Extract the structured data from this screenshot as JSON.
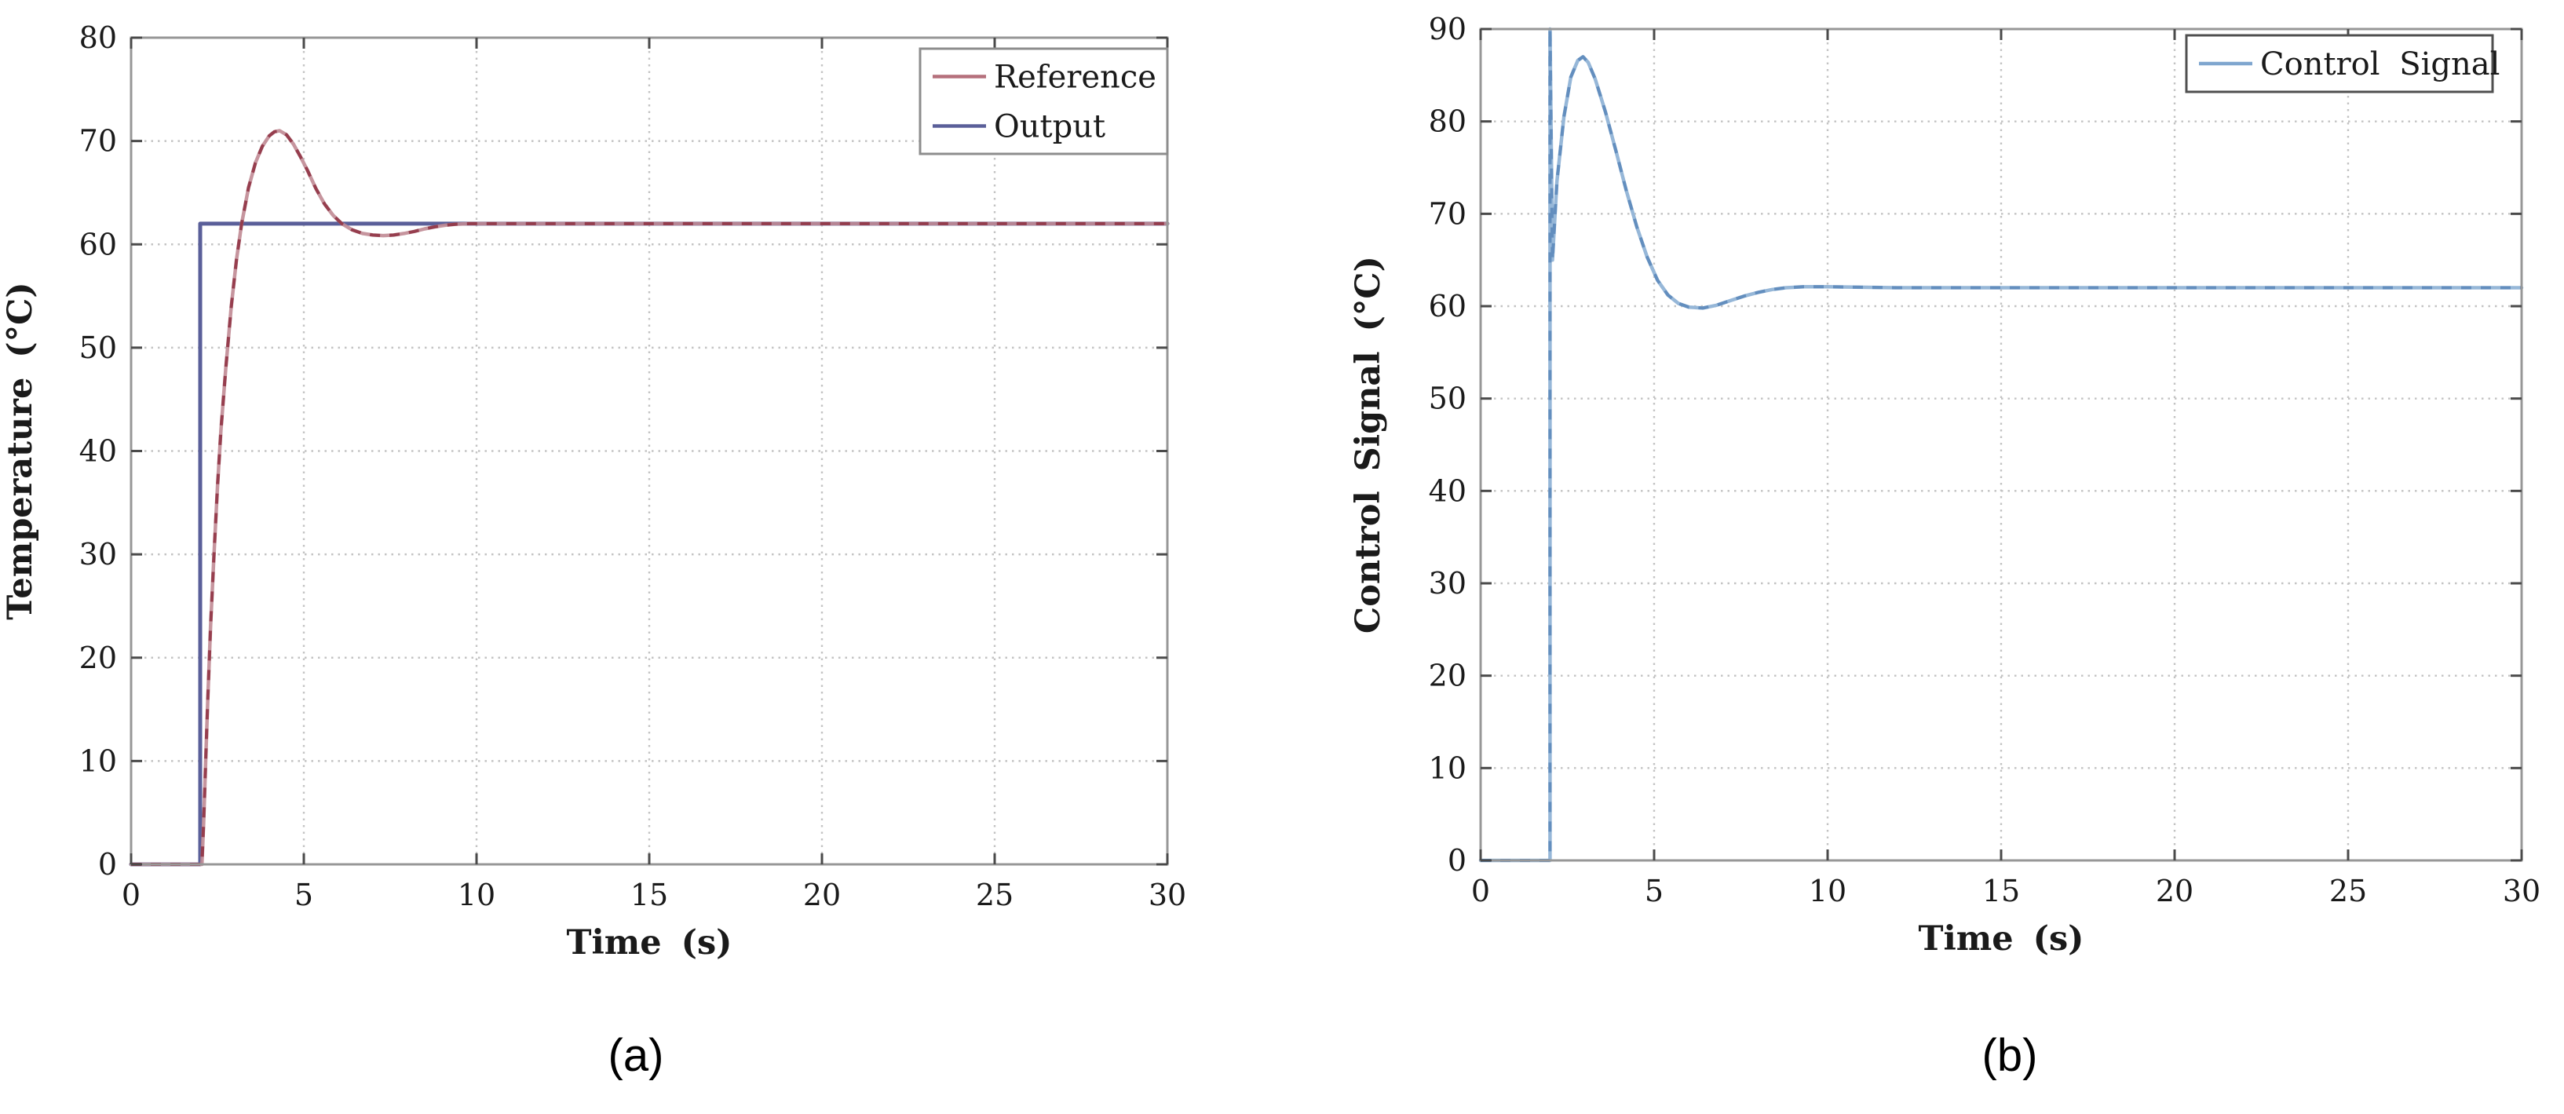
{
  "figure": {
    "background": "#ffffff",
    "captions": [
      {
        "label": "(a)"
      },
      {
        "label": "(b)"
      }
    ]
  },
  "style_colors": {
    "frame": "#979797",
    "grid": "#c3c3c3",
    "tick": "#4a4a4a",
    "text": "#1a1a1a",
    "legend_border_a": "#8d8d8d",
    "legend_border_b": "#4f4f4f",
    "legend_fill": "#ffffff"
  },
  "chart_data": [
    {
      "type": "line",
      "panel_id": "panel-a",
      "title": "",
      "xlabel": "Time (s)",
      "ylabel": "Temperature (°C)",
      "xlim": [
        0,
        30
      ],
      "ylim": [
        0,
        80
      ],
      "xticks": [
        0,
        5,
        10,
        15,
        20,
        25,
        30
      ],
      "yticks": [
        0,
        10,
        20,
        30,
        40,
        50,
        60,
        70,
        80
      ],
      "grid": true,
      "legend": {
        "position": "top-right",
        "entries": [
          {
            "label": "Reference",
            "color": "#b5707c"
          },
          {
            "label": "Output",
            "color": "#5a5f99"
          }
        ]
      },
      "series": [
        {
          "name": "Output",
          "color": "#5a5f99",
          "width": 5,
          "opacity": 1,
          "points": [
            [
              0,
              0
            ],
            [
              2,
              0
            ],
            [
              2,
              62
            ],
            [
              30,
              62
            ]
          ]
        },
        {
          "name": "Reference",
          "color": "#c08a94",
          "dash_color": "#8d2f40",
          "width": 4.5,
          "opacity": 0.9,
          "points": [
            [
              0,
              0
            ],
            [
              2,
              0
            ],
            [
              2.05,
              0
            ],
            [
              2.1,
              4
            ],
            [
              2.16,
              10
            ],
            [
              2.22,
              16
            ],
            [
              2.3,
              23
            ],
            [
              2.4,
              30
            ],
            [
              2.5,
              36.5
            ],
            [
              2.6,
              42
            ],
            [
              2.74,
              48
            ],
            [
              2.9,
              54
            ],
            [
              3.05,
              58.5
            ],
            [
              3.2,
              62
            ],
            [
              3.4,
              65.5
            ],
            [
              3.6,
              67.9
            ],
            [
              3.8,
              69.5
            ],
            [
              4.0,
              70.5
            ],
            [
              4.15,
              70.9
            ],
            [
              4.3,
              71
            ],
            [
              4.5,
              70.6
            ],
            [
              4.7,
              69.7
            ],
            [
              4.9,
              68.5
            ],
            [
              5.1,
              67.2
            ],
            [
              5.35,
              65.4
            ],
            [
              5.6,
              63.9
            ],
            [
              5.85,
              62.8
            ],
            [
              6.1,
              62
            ],
            [
              6.4,
              61.4
            ],
            [
              6.7,
              61.05
            ],
            [
              7.0,
              60.9
            ],
            [
              7.3,
              60.85
            ],
            [
              7.6,
              60.9
            ],
            [
              7.9,
              61.05
            ],
            [
              8.2,
              61.25
            ],
            [
              8.5,
              61.5
            ],
            [
              8.8,
              61.7
            ],
            [
              9.1,
              61.85
            ],
            [
              9.4,
              61.95
            ],
            [
              9.8,
              62
            ],
            [
              10.5,
              62
            ],
            [
              30,
              62
            ]
          ]
        }
      ]
    },
    {
      "type": "line",
      "panel_id": "panel-b",
      "title": "",
      "xlabel": "Time (s)",
      "ylabel": "Control Signal (°C)",
      "xlim": [
        0,
        30
      ],
      "ylim": [
        0,
        90
      ],
      "xticks": [
        0,
        5,
        10,
        15,
        20,
        25,
        30
      ],
      "yticks": [
        0,
        10,
        20,
        30,
        40,
        50,
        60,
        70,
        80,
        90
      ],
      "grid": true,
      "legend": {
        "position": "top-right",
        "entries": [
          {
            "label": "Control Signal",
            "color": "#7fa6cf"
          }
        ]
      },
      "series": [
        {
          "name": "Control Signal",
          "color": "#96b7d8",
          "dash_color": "#5a87ba",
          "width": 4.5,
          "opacity": 1,
          "points": [
            [
              0,
              0
            ],
            [
              2,
              0
            ],
            [
              2,
              90
            ],
            [
              2.07,
              65
            ],
            [
              2.2,
              73.5
            ],
            [
              2.4,
              80.5
            ],
            [
              2.6,
              84.8
            ],
            [
              2.8,
              86.6
            ],
            [
              2.95,
              87
            ],
            [
              3.1,
              86.4
            ],
            [
              3.3,
              84.6
            ],
            [
              3.6,
              81
            ],
            [
              3.9,
              76.8
            ],
            [
              4.2,
              72.5
            ],
            [
              4.5,
              68.6
            ],
            [
              4.8,
              65.3
            ],
            [
              5.1,
              62.8
            ],
            [
              5.4,
              61.2
            ],
            [
              5.7,
              60.3
            ],
            [
              6.0,
              59.9
            ],
            [
              6.4,
              59.8
            ],
            [
              6.8,
              60.1
            ],
            [
              7.2,
              60.6
            ],
            [
              7.6,
              61.1
            ],
            [
              8.0,
              61.5
            ],
            [
              8.4,
              61.8
            ],
            [
              8.8,
              62
            ],
            [
              9.3,
              62.1
            ],
            [
              10,
              62.1
            ],
            [
              12,
              62
            ],
            [
              30,
              62
            ]
          ]
        }
      ]
    }
  ]
}
